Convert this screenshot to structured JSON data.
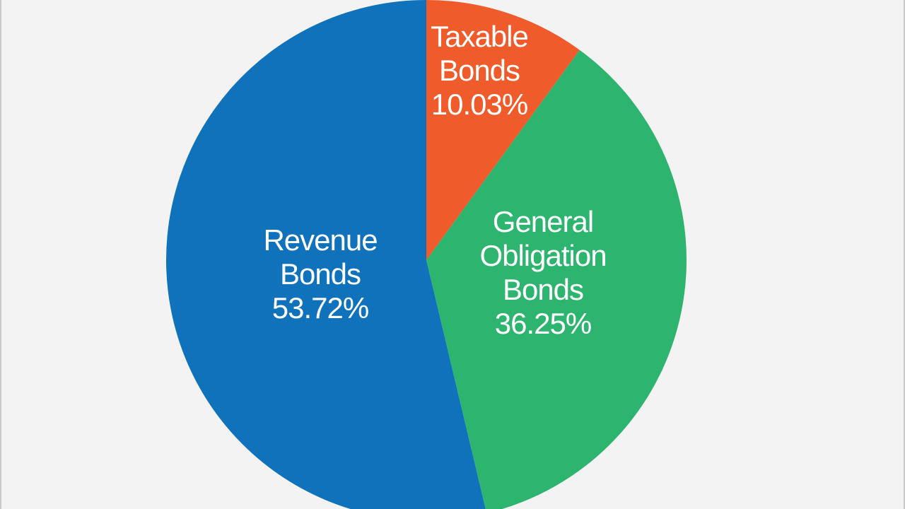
{
  "chart_data": {
    "type": "pie",
    "slices": [
      {
        "label_lines": [
          "Taxable",
          "Bonds"
        ],
        "value": 10.03,
        "value_label": "10.03%",
        "color": "#ef5b2b"
      },
      {
        "label_lines": [
          "General",
          "Obligation",
          "Bonds"
        ],
        "value": 36.25,
        "value_label": "36.25%",
        "color": "#2db46f"
      },
      {
        "label_lines": [
          "Revenue",
          "Bonds"
        ],
        "value": 53.72,
        "value_label": "53.72%",
        "color": "#1072bb"
      }
    ],
    "start_angle_deg": 0,
    "direction": "clockwise",
    "background": "#f3f3f4"
  }
}
